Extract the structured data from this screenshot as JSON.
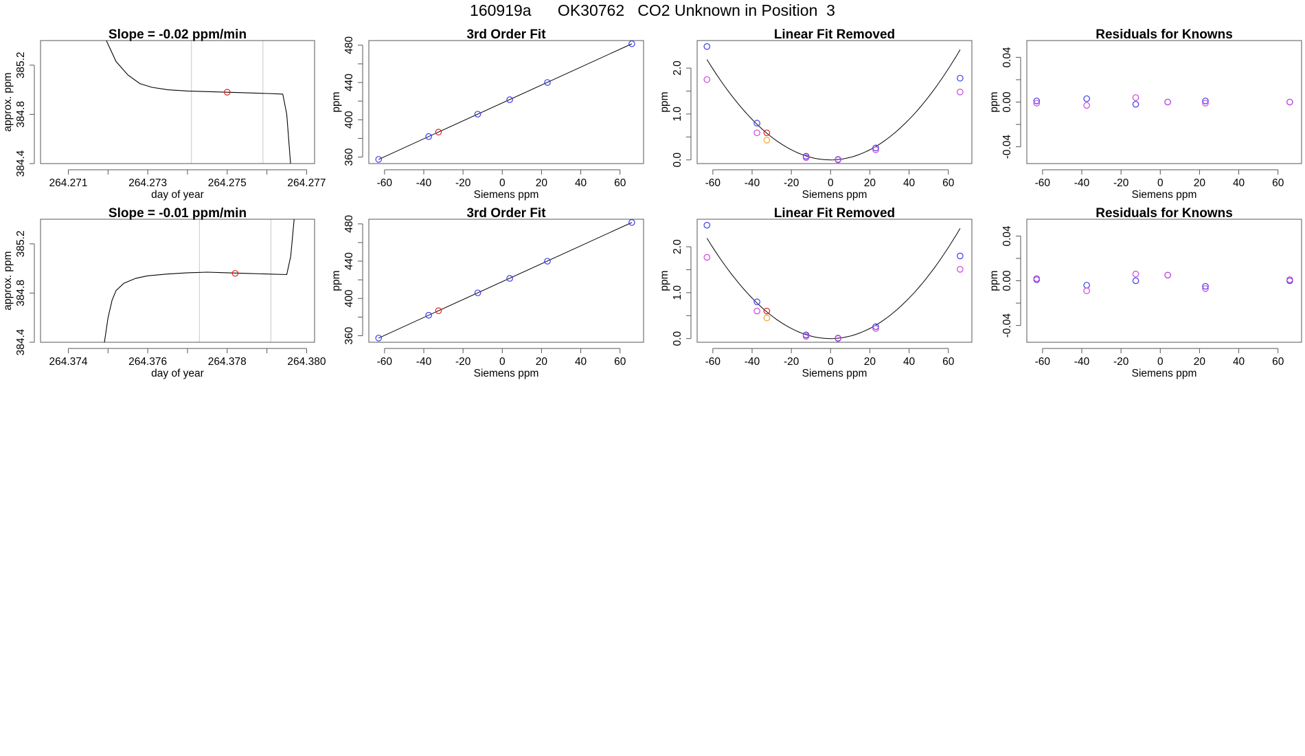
{
  "header": {
    "title": "160919a      OK30762   CO2 Unknown in Position  3"
  },
  "colors": {
    "line": "#000000",
    "frame": "#555555",
    "window": "#c8c8c8",
    "blue": "#3a3af0",
    "magenta": "#cc44dd",
    "red": "#e02020",
    "orange": "#f5a623"
  },
  "chart_data": [
    {
      "type": "line",
      "title": "Slope =  -0.02  ppm/min",
      "xlabel": "day of year",
      "ylabel": "approx. ppm",
      "xlim": [
        264.2703,
        264.2772
      ],
      "ylim": [
        384.4,
        385.4
      ],
      "xticks": [
        "264.271",
        "264.273",
        "264.275",
        "264.277"
      ],
      "xtick_values": [
        264.271,
        264.273,
        264.275,
        264.277
      ],
      "yticks": [
        "384.4",
        "384.8",
        "385.2"
      ],
      "ytick_values": [
        384.4,
        384.8,
        385.2
      ],
      "minor_xticks": [
        264.272,
        264.274,
        264.276
      ],
      "windows": [
        264.2741,
        264.2759
      ],
      "series": [
        {
          "color": "black",
          "x": [
            264.2719,
            264.2722,
            264.2725,
            264.2728,
            264.2731,
            264.2735,
            264.274,
            264.2745,
            264.275,
            264.2755,
            264.276,
            264.2764,
            264.2765,
            264.2766
          ],
          "y": [
            385.44,
            385.23,
            385.12,
            385.05,
            385.02,
            385.0,
            384.99,
            384.985,
            384.98,
            384.975,
            384.97,
            384.965,
            384.8,
            384.38
          ]
        }
      ],
      "marker": {
        "color": "red",
        "x": [
          264.275
        ],
        "y": [
          384.98
        ]
      }
    },
    {
      "type": "scatter",
      "title": "3rd Order Fit",
      "xlabel": "Siemens ppm",
      "ylabel": "ppm",
      "xlim": [
        -68,
        72
      ],
      "ylim": [
        353,
        485
      ],
      "xticks": [
        "-60",
        "-40",
        "-20",
        "0",
        "20",
        "40",
        "60"
      ],
      "xtick_values": [
        -60,
        -40,
        -20,
        0,
        20,
        40,
        60
      ],
      "yticks": [
        "360",
        "400",
        "440",
        "480"
      ],
      "ytick_values": [
        360,
        400,
        440,
        480
      ],
      "minor_yticks": [
        380,
        420,
        460
      ],
      "fit_line": {
        "x": [
          -63,
          66
        ],
        "y": [
          357.5,
          481.5
        ]
      },
      "series": [
        {
          "color": "blue",
          "x": [
            -63,
            -37.5,
            -12.5,
            3.8,
            23,
            66
          ],
          "y": [
            357.5,
            382,
            406,
            421.5,
            440,
            481.5
          ]
        },
        {
          "color": "red",
          "x": [
            -32.5
          ],
          "y": [
            386.8
          ]
        }
      ]
    },
    {
      "type": "scatter",
      "title": "Linear Fit Removed",
      "xlabel": "Siemens ppm",
      "ylabel": "ppm",
      "xlim": [
        -68,
        72
      ],
      "ylim": [
        -0.08,
        2.6
      ],
      "xticks": [
        "-60",
        "-40",
        "-20",
        "0",
        "20",
        "40",
        "60"
      ],
      "xtick_values": [
        -60,
        -40,
        -20,
        0,
        20,
        40,
        60
      ],
      "yticks": [
        "0.0",
        "1.0",
        "2.0"
      ],
      "ytick_values": [
        0,
        1,
        2
      ],
      "minor_yticks": [
        0.5,
        1.5
      ],
      "fit_curve": {
        "type": "quadratic",
        "a": 0.000551,
        "x0": 0,
        "xrange": [
          -63,
          66
        ]
      },
      "series": [
        {
          "color": "blue",
          "x": [
            -63,
            -37.5,
            -12.5,
            3.8,
            23,
            66
          ],
          "y": [
            2.47,
            0.8,
            0.08,
            0.01,
            0.26,
            1.78
          ]
        },
        {
          "color": "magenta",
          "x": [
            -63,
            -37.5,
            -12.5,
            3.8,
            23,
            66
          ],
          "y": [
            1.75,
            0.59,
            0.05,
            0.0,
            0.22,
            1.48
          ]
        },
        {
          "color": "red",
          "x": [
            -32.5
          ],
          "y": [
            0.59
          ]
        },
        {
          "color": "orange",
          "x": [
            -32.5
          ],
          "y": [
            0.43
          ]
        }
      ]
    },
    {
      "type": "scatter",
      "title": "Residuals for Knowns",
      "xlabel": "Siemens ppm",
      "ylabel": "ppm",
      "xlim": [
        -68,
        72
      ],
      "ylim": [
        -0.055,
        0.055
      ],
      "xticks": [
        "-60",
        "-40",
        "-20",
        "0",
        "20",
        "40",
        "60"
      ],
      "xtick_values": [
        -60,
        -40,
        -20,
        0,
        20,
        40,
        60
      ],
      "yticks": [
        "-0.04",
        "0.00",
        "0.04"
      ],
      "ytick_values": [
        -0.04,
        0,
        0.04
      ],
      "minor_yticks": [
        -0.02,
        0.02
      ],
      "series": [
        {
          "color": "blue",
          "x": [
            -63,
            -37.5,
            -12.5,
            3.8,
            23,
            66
          ],
          "y": [
            0.001,
            0.003,
            -0.002,
            0.0,
            0.001,
            0.0
          ]
        },
        {
          "color": "magenta",
          "x": [
            -63,
            -37.5,
            -12.5,
            3.8,
            23,
            66
          ],
          "y": [
            -0.001,
            -0.003,
            0.004,
            0.0,
            -0.001,
            0.0
          ]
        }
      ]
    },
    {
      "type": "line",
      "title": "Slope =  -0.01  ppm/min",
      "xlabel": "day of year",
      "ylabel": "approx. ppm",
      "xlim": [
        264.3733,
        264.3802
      ],
      "ylim": [
        384.4,
        385.4
      ],
      "xticks": [
        "264.374",
        "264.376",
        "264.378",
        "264.380"
      ],
      "xtick_values": [
        264.374,
        264.376,
        264.378,
        264.38
      ],
      "yticks": [
        "384.4",
        "384.8",
        "385.2"
      ],
      "ytick_values": [
        384.4,
        384.8,
        385.2
      ],
      "minor_xticks": [
        264.375,
        264.377,
        264.379
      ],
      "windows": [
        264.3773,
        264.3791
      ],
      "series": [
        {
          "color": "black",
          "x": [
            264.3749,
            264.375,
            264.3751,
            264.3752,
            264.3754,
            264.3757,
            264.376,
            264.3765,
            264.377,
            264.3775,
            264.378,
            264.3785,
            264.379,
            264.3795,
            264.3796,
            264.3797
          ],
          "y": [
            384.38,
            384.6,
            384.74,
            384.82,
            384.88,
            384.92,
            384.94,
            384.955,
            384.965,
            384.97,
            384.965,
            384.96,
            384.955,
            384.95,
            385.1,
            385.45
          ]
        }
      ],
      "marker": {
        "color": "red",
        "x": [
          264.3782
        ],
        "y": [
          384.96
        ]
      }
    },
    {
      "type": "scatter",
      "title": "3rd Order Fit",
      "xlabel": "Siemens ppm",
      "ylabel": "ppm",
      "xlim": [
        -68,
        72
      ],
      "ylim": [
        353,
        485
      ],
      "xticks": [
        "-60",
        "-40",
        "-20",
        "0",
        "20",
        "40",
        "60"
      ],
      "xtick_values": [
        -60,
        -40,
        -20,
        0,
        20,
        40,
        60
      ],
      "yticks": [
        "360",
        "400",
        "440",
        "480"
      ],
      "ytick_values": [
        360,
        400,
        440,
        480
      ],
      "minor_yticks": [
        380,
        420,
        460
      ],
      "fit_line": {
        "x": [
          -63,
          66
        ],
        "y": [
          357.5,
          481.5
        ]
      },
      "series": [
        {
          "color": "blue",
          "x": [
            -63,
            -37.5,
            -12.5,
            3.8,
            23,
            66
          ],
          "y": [
            357.5,
            382,
            406,
            421.5,
            440,
            481.5
          ]
        },
        {
          "color": "red",
          "x": [
            -32.5
          ],
          "y": [
            386.8
          ]
        }
      ]
    },
    {
      "type": "scatter",
      "title": "Linear Fit Removed",
      "xlabel": "Siemens ppm",
      "ylabel": "ppm",
      "xlim": [
        -68,
        72
      ],
      "ylim": [
        -0.08,
        2.6
      ],
      "xticks": [
        "-60",
        "-40",
        "-20",
        "0",
        "20",
        "40",
        "60"
      ],
      "xtick_values": [
        -60,
        -40,
        -20,
        0,
        20,
        40,
        60
      ],
      "yticks": [
        "0.0",
        "1.0",
        "2.0"
      ],
      "ytick_values": [
        0,
        1,
        2
      ],
      "minor_yticks": [
        0.5,
        1.5
      ],
      "fit_curve": {
        "type": "quadratic",
        "a": 0.000551,
        "x0": 0,
        "xrange": [
          -63,
          66
        ]
      },
      "series": [
        {
          "color": "blue",
          "x": [
            -63,
            -37.5,
            -12.5,
            3.8,
            23,
            66
          ],
          "y": [
            2.47,
            0.8,
            0.08,
            0.01,
            0.26,
            1.8
          ]
        },
        {
          "color": "magenta",
          "x": [
            -63,
            -37.5,
            -12.5,
            3.8,
            23,
            66
          ],
          "y": [
            1.77,
            0.6,
            0.05,
            0.0,
            0.22,
            1.51
          ]
        },
        {
          "color": "red",
          "x": [
            -32.5
          ],
          "y": [
            0.6
          ]
        },
        {
          "color": "orange",
          "x": [
            -32.5
          ],
          "y": [
            0.45
          ]
        }
      ]
    },
    {
      "type": "scatter",
      "title": "Residuals for Knowns",
      "xlabel": "Siemens ppm",
      "ylabel": "ppm",
      "xlim": [
        -68,
        72
      ],
      "ylim": [
        -0.055,
        0.055
      ],
      "xticks": [
        "-60",
        "-40",
        "-20",
        "0",
        "20",
        "40",
        "60"
      ],
      "xtick_values": [
        -60,
        -40,
        -20,
        0,
        20,
        40,
        60
      ],
      "yticks": [
        "-0.04",
        "0.00",
        "0.04"
      ],
      "ytick_values": [
        -0.04,
        0,
        0.04
      ],
      "minor_yticks": [
        -0.02,
        0.02
      ],
      "series": [
        {
          "color": "blue",
          "x": [
            -63,
            -37.5,
            -12.5,
            3.8,
            23,
            66
          ],
          "y": [
            0.001,
            -0.004,
            0.0,
            0.005,
            -0.005,
            0.0
          ]
        },
        {
          "color": "magenta",
          "x": [
            -63,
            -37.5,
            -12.5,
            3.8,
            23,
            66
          ],
          "y": [
            0.002,
            -0.009,
            0.006,
            0.005,
            -0.007,
            0.001
          ]
        }
      ]
    }
  ]
}
